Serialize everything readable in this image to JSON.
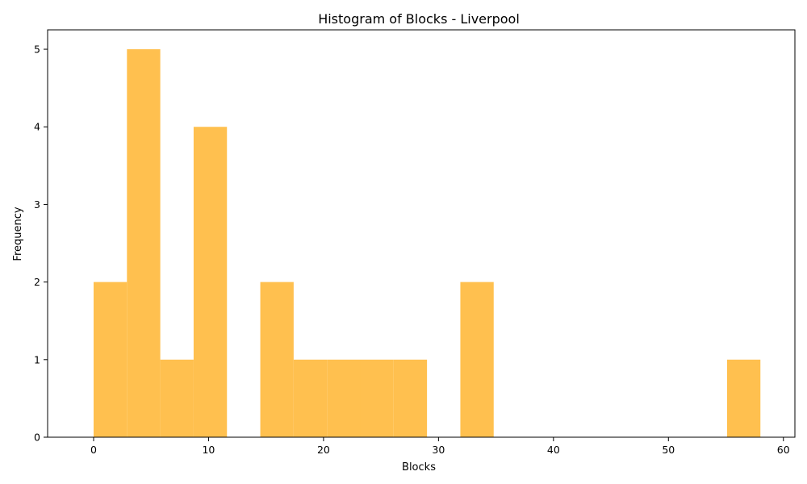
{
  "chart_data": {
    "type": "bar",
    "title": "Histogram of Blocks - Liverpool",
    "xlabel": "Blocks",
    "ylabel": "Frequency",
    "bar_color": "#ffc04f",
    "xlim": [
      -4,
      61
    ],
    "ylim": [
      0,
      5.25
    ],
    "xticks": [
      0,
      10,
      20,
      30,
      40,
      50,
      60
    ],
    "yticks": [
      0,
      1,
      2,
      3,
      4,
      5
    ],
    "bin_edges": [
      0,
      2.9,
      5.8,
      8.7,
      11.6,
      14.5,
      17.4,
      20.3,
      23.2,
      26.1,
      29.0,
      31.9,
      34.8,
      37.7,
      40.6,
      43.5,
      46.4,
      49.3,
      52.2,
      55.1,
      58.0
    ],
    "values": [
      2,
      5,
      1,
      4,
      0,
      2,
      1,
      1,
      1,
      1,
      0,
      2,
      0,
      0,
      0,
      0,
      0,
      0,
      0,
      1
    ]
  }
}
